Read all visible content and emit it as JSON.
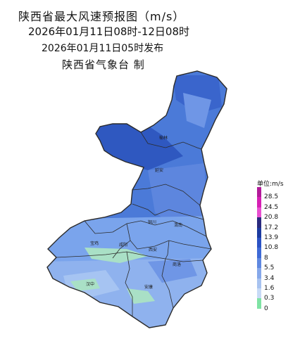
{
  "title": {
    "line1": "陕西省最大风速预报图（m/s）",
    "line2": "2026年01月11日08时-12日08时",
    "line3": "2026年01月11日05时发布",
    "line4": "陕西省气象台 制"
  },
  "map": {
    "region": "陕西省",
    "city_labels": [
      "榆林",
      "延安",
      "铜川",
      "渭南",
      "宝鸡",
      "咸阳",
      "西安",
      "商洛",
      "汉中",
      "安康"
    ],
    "colors": {
      "deep": "#2f58c0",
      "mid": "#4b7ad8",
      "light": "#7aa4ec",
      "pale": "#a6c4f2",
      "green": "#a9e0c6",
      "border": "#2b2b2b"
    }
  },
  "legend": {
    "title": "单位:m/s",
    "values": [
      "28.5",
      "24.5",
      "20.8",
      "17.2",
      "13.9",
      "10.8",
      "8",
      "5.5",
      "3.4",
      "1.6",
      "0.3",
      "0"
    ],
    "colors": [
      "#b21a99",
      "#d61fb4",
      "#e84fd0",
      "#2a2a7e",
      "#1c3ba0",
      "#2b52c4",
      "#3e6ad6",
      "#5f88e0",
      "#86a8ea",
      "#a8c3f0",
      "#c7daf6",
      "#7fe3a4"
    ]
  }
}
